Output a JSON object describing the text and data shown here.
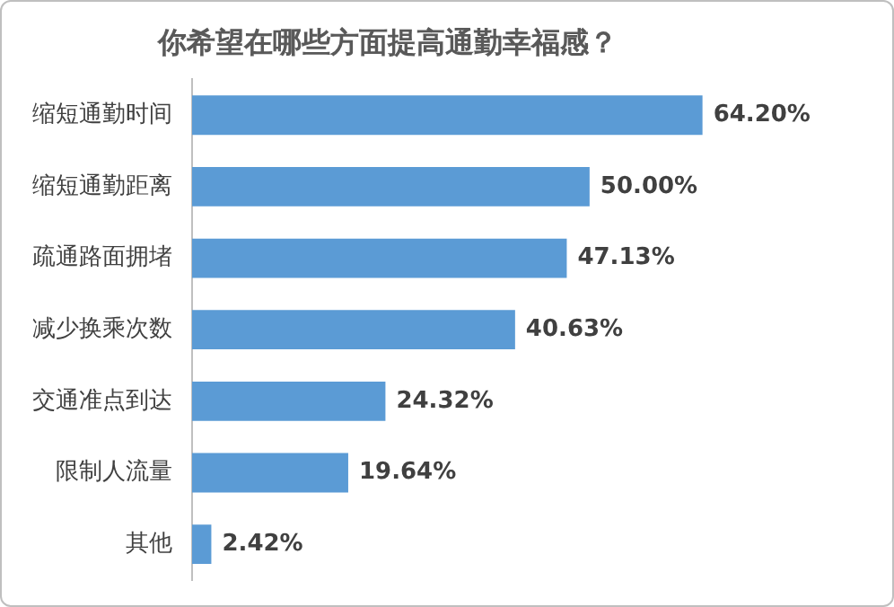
{
  "chart_data": {
    "type": "bar",
    "orientation": "horizontal",
    "title": "你希望在哪些方面提高通勤幸福感？",
    "categories": [
      "缩短通勤时间",
      "缩短通勤距离",
      "疏通路面拥堵",
      "减少换乘次数",
      "交通准点到达",
      "限制人流量",
      "其他"
    ],
    "values": [
      64.2,
      50,
      47.13,
      40.63,
      24.32,
      19.64,
      2.42
    ],
    "value_labels": [
      "64.20%",
      "50.00%",
      "47.13%",
      "40.63%",
      "24.32%",
      "19.64%",
      "2.42%"
    ],
    "color": "#5b9bd5",
    "legend": false
  }
}
